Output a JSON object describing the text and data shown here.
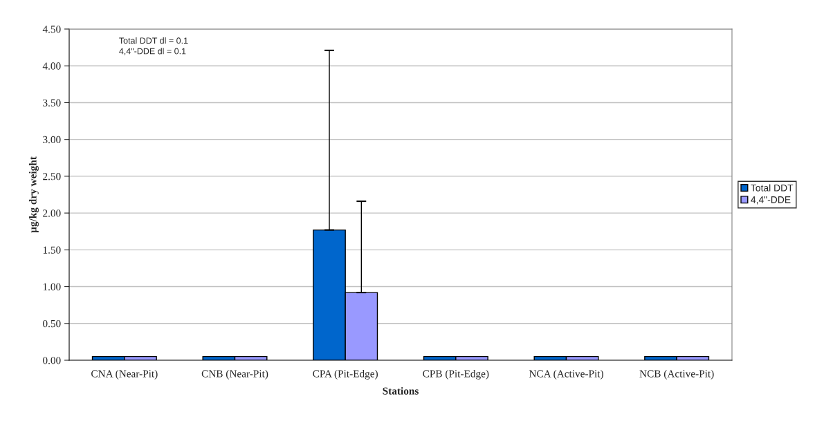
{
  "chart_data": {
    "type": "bar",
    "categories": [
      "CNA (Near-Pit)",
      "CNB (Near-Pit)",
      "CPA (Pit-Edge)",
      "CPB (Pit-Edge)",
      "NCA (Active-Pit)",
      "NCB (Active-Pit)"
    ],
    "series": [
      {
        "name": "Total DDT",
        "color": "#0066cc",
        "values": [
          0.05,
          0.05,
          1.77,
          0.05,
          0.05,
          0.05
        ],
        "errors": [
          null,
          null,
          [
            1.77,
            4.21
          ],
          null,
          null,
          null
        ]
      },
      {
        "name": "4,4\"-DDE",
        "color": "#9999ff",
        "values": [
          0.05,
          0.05,
          0.92,
          0.05,
          0.05,
          0.05
        ],
        "errors": [
          null,
          null,
          [
            0.92,
            2.16
          ],
          null,
          null,
          null
        ]
      }
    ],
    "xlabel": "Stations",
    "ylabel": "µg/kg dry weight",
    "ylim": [
      0,
      4.5
    ],
    "yticks": [
      {
        "value": 0,
        "label": "0.00"
      },
      {
        "value": 0.5,
        "label": "0.50"
      },
      {
        "value": 1,
        "label": "1.00"
      },
      {
        "value": 1.5,
        "label": "1.50"
      },
      {
        "value": 2,
        "label": "2.00"
      },
      {
        "value": 2.5,
        "label": "2.50"
      },
      {
        "value": 3,
        "label": "3.00"
      },
      {
        "value": 3.5,
        "label": "3.50"
      },
      {
        "value": 4,
        "label": "4.00"
      },
      {
        "value": 4.5,
        "label": "4.50"
      }
    ],
    "grid": "y",
    "legend": "right",
    "annotations": [
      "Total DDT dl = 0.1\n4,4\"-DDE dl = 0.1"
    ]
  }
}
